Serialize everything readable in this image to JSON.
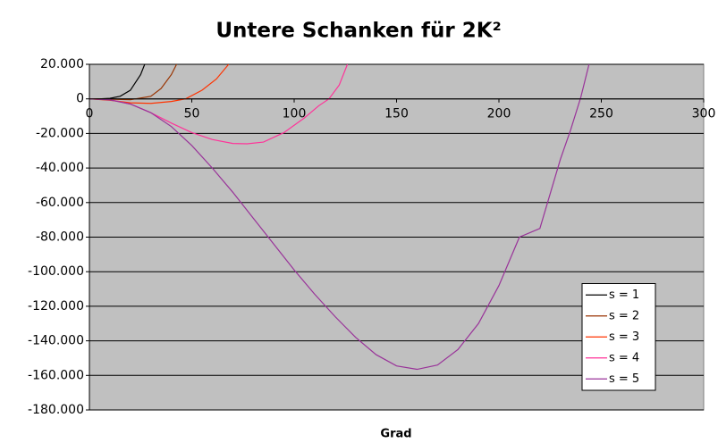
{
  "chart_data": {
    "type": "line",
    "title": "Untere Schanken für 2K²",
    "x_label": "Grad",
    "xlim": [
      0,
      300
    ],
    "xticks": [
      0,
      50,
      100,
      150,
      200,
      250,
      300
    ],
    "ylim": [
      -180000,
      20000
    ],
    "yticks": [
      {
        "value": 20000,
        "label": "20.000"
      },
      0,
      {
        "value": -20000,
        "label": "-20.000"
      },
      {
        "value": -40000,
        "label": "-40.000"
      },
      {
        "value": -60000,
        "label": "-60.000"
      },
      {
        "value": -80000,
        "label": "-80.000"
      },
      {
        "value": -100000,
        "label": "-100.000"
      },
      {
        "value": -120000,
        "label": "-120.000"
      },
      {
        "value": -140000,
        "label": "-140.000"
      },
      {
        "value": -160000,
        "label": "-160.000"
      },
      {
        "value": -180000,
        "label": "-180.000"
      }
    ],
    "grid": true,
    "legend": "lower right",
    "series": [
      {
        "name": "s = 1",
        "color": "#000000",
        "x": [
          0,
          5,
          10,
          15,
          20,
          25,
          27
        ],
        "values": [
          0,
          0,
          300,
          1500,
          5000,
          14000,
          20000
        ]
      },
      {
        "name": "s = 2",
        "color": "#993300",
        "x": [
          0,
          10,
          20,
          30,
          35,
          40,
          43
        ],
        "values": [
          0,
          -200,
          -500,
          1500,
          6000,
          14000,
          21000
        ]
      },
      {
        "name": "s = 3",
        "color": "#ff3300",
        "x": [
          0,
          10,
          20,
          30,
          40,
          47,
          55,
          62,
          68
        ],
        "values": [
          0,
          -800,
          -2300,
          -2600,
          -1500,
          0,
          5000,
          11500,
          20000
        ]
      },
      {
        "name": "s = 4",
        "color": "#ff3399",
        "x": [
          0,
          10,
          20,
          30,
          40,
          50,
          60,
          70,
          77,
          85,
          95,
          105,
          112,
          117,
          122,
          126
        ],
        "values": [
          0,
          -500,
          -3000,
          -8000,
          -14000,
          -19500,
          -23500,
          -25800,
          -26000,
          -25000,
          -19500,
          -11000,
          -4000,
          0,
          8000,
          20000
        ]
      },
      {
        "name": "s = 5",
        "color": "#993399",
        "x": [
          0,
          10,
          20,
          30,
          40,
          50,
          60,
          70,
          80,
          90,
          100,
          110,
          120,
          130,
          140,
          150,
          160,
          170,
          180,
          190,
          200,
          210,
          220,
          230,
          235,
          240,
          244
        ],
        "values": [
          0,
          -600,
          -3000,
          -8000,
          -16000,
          -27000,
          -40000,
          -54000,
          -69000,
          -84000,
          -99000,
          -113000,
          -126000,
          -138000,
          -148000,
          -154500,
          -156500,
          -154000,
          -145000,
          -130000,
          -108000,
          -80000,
          -75000,
          -35000,
          -18000,
          1000,
          20000
        ]
      }
    ]
  }
}
